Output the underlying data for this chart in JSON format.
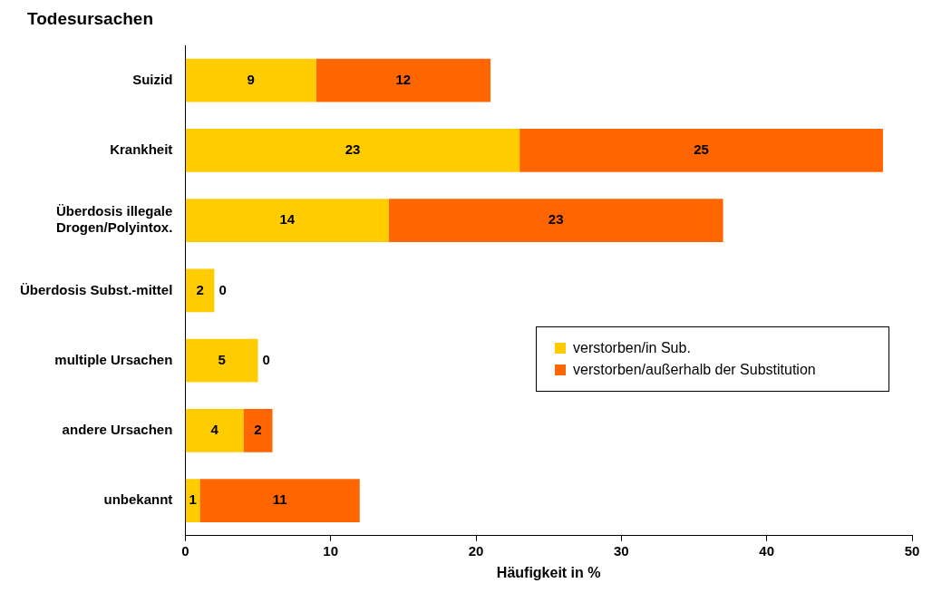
{
  "chart_data": {
    "type": "bar",
    "orientation": "horizontal",
    "stacked": true,
    "title": "Todesursachen",
    "xlabel": "Häufigkeit in %",
    "categories": [
      "Suizid",
      "Krankheit",
      "Überdosis illegale Drogen/Polyintox.",
      "Überdosis Subst.-mittel",
      "multiple Ursachen",
      "andere Ursachen",
      "unbekannt"
    ],
    "series": [
      {
        "name": "verstorben/in Sub.",
        "color": "#ffcc00",
        "values": [
          9,
          23,
          14,
          2,
          5,
          4,
          1
        ]
      },
      {
        "name": "verstorben/außerhalb der Substitution",
        "color": "#ff6600",
        "values": [
          12,
          25,
          23,
          0,
          0,
          2,
          11
        ]
      }
    ],
    "xlim": [
      0,
      50
    ],
    "xticks": [
      0,
      10,
      20,
      30,
      40,
      50
    ],
    "grid": false,
    "legend": "right",
    "data_labels": true
  }
}
